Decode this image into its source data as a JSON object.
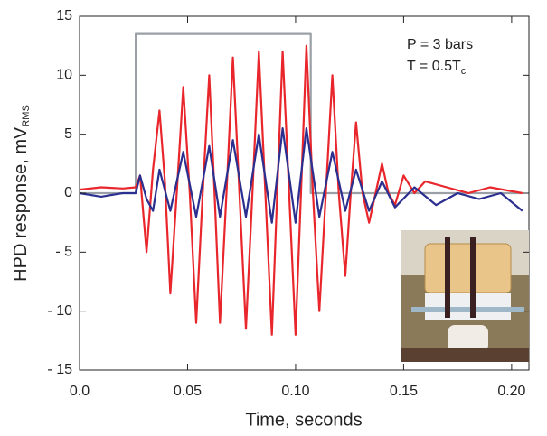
{
  "chart_data": {
    "type": "line",
    "x_label": "Time, seconds",
    "y_label": "HPD response, mV",
    "y_label_sub": "RMS",
    "annotations": [
      "P = 3 bars",
      "T = 0.5T"
    ],
    "annotation_sub": "c",
    "xlim": [
      0,
      0.208
    ],
    "ylim": [
      -15,
      15
    ],
    "xticks": [
      {
        "value": 0,
        "label": "0.0"
      },
      0.05,
      {
        "value": 0.1,
        "label": "0.10"
      },
      0.15,
      {
        "value": 0.2,
        "label": "0.20"
      }
    ],
    "yticks": [
      {
        "value": -15,
        "label": "- 15"
      },
      {
        "value": -10,
        "label": "- 10"
      },
      {
        "value": -5,
        "label": "- 5"
      },
      0,
      5,
      10,
      15
    ],
    "series": [
      {
        "color": "#9aa0a6",
        "x": [
          0,
          0.026,
          0.026,
          0.107,
          0.107,
          0.205
        ],
        "values": [
          0,
          0,
          13.5,
          13.5,
          0,
          0
        ]
      },
      {
        "color": "#e8262b",
        "x": [
          0,
          0.01,
          0.02,
          0.026,
          0.028,
          0.031,
          0.034,
          0.037,
          0.0395,
          0.042,
          0.045,
          0.048,
          0.051,
          0.054,
          0.057,
          0.06,
          0.0625,
          0.065,
          0.068,
          0.071,
          0.074,
          0.077,
          0.08,
          0.083,
          0.086,
          0.089,
          0.0915,
          0.094,
          0.097,
          0.1,
          0.1025,
          0.105,
          0.108,
          0.111,
          0.114,
          0.117,
          0.12,
          0.123,
          0.1255,
          0.128,
          0.131,
          0.134,
          0.137,
          0.14,
          0.143,
          0.146,
          0.15,
          0.155,
          0.16,
          0.17,
          0.18,
          0.19,
          0.205
        ],
        "values": [
          0.3,
          0.5,
          0.4,
          0.5,
          1.5,
          -5,
          2,
          7,
          1,
          -8.5,
          0,
          9,
          0,
          -11,
          0,
          10,
          0,
          -11,
          0,
          11.5,
          0,
          -11.5,
          0,
          12,
          0,
          -12,
          0,
          12,
          0,
          -12,
          0,
          12.5,
          0,
          -10,
          0,
          10,
          0,
          -7,
          0,
          6,
          0,
          -2.5,
          0,
          2.5,
          0,
          -1,
          1.5,
          0,
          1,
          0.5,
          0,
          0.5,
          0
        ]
      },
      {
        "color": "#2b2f8f",
        "x": [
          0,
          0.01,
          0.02,
          0.026,
          0.028,
          0.031,
          0.034,
          0.037,
          0.042,
          0.048,
          0.054,
          0.06,
          0.065,
          0.071,
          0.077,
          0.083,
          0.089,
          0.094,
          0.1,
          0.105,
          0.111,
          0.117,
          0.123,
          0.128,
          0.134,
          0.14,
          0.146,
          0.155,
          0.165,
          0.175,
          0.185,
          0.195,
          0.205
        ],
        "values": [
          0,
          -0.3,
          0,
          0,
          1.5,
          -0.5,
          -1.5,
          2,
          -1.5,
          3.5,
          -2,
          4,
          -2,
          4.5,
          -2,
          5,
          -2.5,
          5.5,
          -2.5,
          5.5,
          -2,
          3.5,
          -1.5,
          2,
          -1.5,
          1,
          -1.2,
          0.5,
          -1,
          0,
          -0.5,
          0,
          -1.5
        ]
      }
    ]
  }
}
